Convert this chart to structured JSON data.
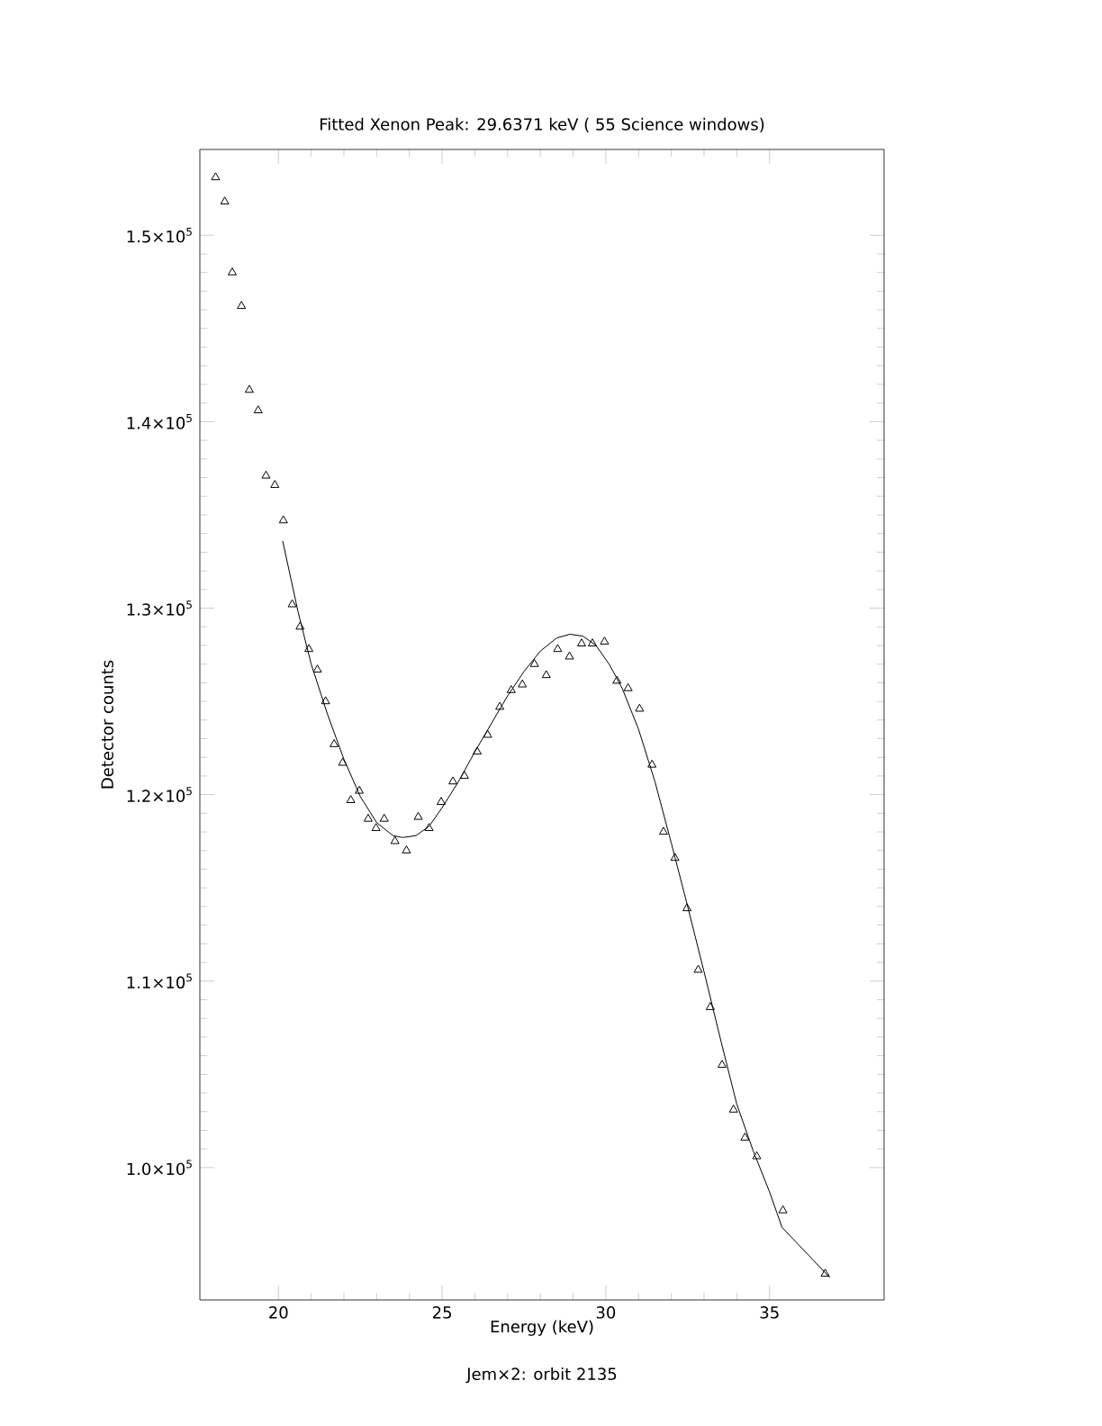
{
  "chart_data": {
    "type": "scatter",
    "title": "Fitted Xenon Peak:      29.6371 keV (      55 Science windows)",
    "xlabel": "Energy (keV)",
    "ylabel": "Detector counts",
    "annotations": [
      "Jem×2: orbit 2135"
    ],
    "xlim": [
      17.6,
      38.5
    ],
    "ylim": [
      92900,
      154600
    ],
    "xticks": [
      20,
      25,
      30,
      35
    ],
    "yticks": [
      {
        "value": 100000,
        "label": "1.0×10$^{5}$"
      },
      {
        "value": 110000,
        "label": "1.1×10$^{5}$"
      },
      {
        "value": 120000,
        "label": "1.2×10$^{5}$"
      },
      {
        "value": 130000,
        "label": "1.3×10$^{5}$"
      },
      {
        "value": 140000,
        "label": "1.4×10$^{5}$"
      },
      {
        "value": 150000,
        "label": "1.5×10$^{5}$"
      }
    ],
    "grid": false,
    "series": [
      {
        "color": "#000000",
        "marker": "triangle",
        "x": [
          18.08,
          18.36,
          18.59,
          18.87,
          19.11,
          19.38,
          19.62,
          19.89,
          20.15,
          20.42,
          20.66,
          20.93,
          21.19,
          21.44,
          21.7,
          21.96,
          22.21,
          22.47,
          22.74,
          22.98,
          23.23,
          23.56,
          23.91,
          24.27,
          24.6,
          24.97,
          25.33,
          25.68,
          26.07,
          26.39,
          26.76,
          27.11,
          27.45,
          27.82,
          28.18,
          28.53,
          28.89,
          29.26,
          29.59,
          29.96,
          30.34,
          30.68,
          31.03,
          31.41,
          31.76,
          32.11,
          32.48,
          32.82,
          33.19,
          33.55,
          33.9,
          34.25,
          34.61,
          35.41,
          36.7
        ],
        "values": [
          153100,
          151800,
          148000,
          146200,
          141700,
          140600,
          137100,
          136600,
          134700,
          130200,
          129000,
          127800,
          126700,
          125000,
          122700,
          121700,
          119700,
          120200,
          118700,
          118200,
          118700,
          117500,
          117000,
          118800,
          118200,
          119600,
          120700,
          121000,
          122300,
          123200,
          124700,
          125600,
          125900,
          127000,
          126400,
          127800,
          127400,
          128100,
          128100,
          128200,
          126100,
          125700,
          124600,
          121600,
          118000,
          116600,
          113900,
          110600,
          108600,
          105500,
          103100,
          101600,
          100600,
          97700,
          94300
        ]
      },
      {
        "type": "line",
        "color": "#000000",
        "marker": "none",
        "line_style": "solid",
        "x": [
          20.13,
          20.6,
          21.0,
          21.5,
          22.0,
          22.5,
          23.0,
          23.5,
          23.8,
          24.2,
          24.6,
          25.0,
          25.5,
          26.0,
          26.5,
          27.0,
          27.5,
          28.0,
          28.5,
          28.9,
          29.3,
          29.7,
          30.1,
          30.5,
          31.0,
          31.5,
          32.0,
          32.5,
          33.0,
          33.5,
          34.0,
          34.5,
          35.0,
          35.38,
          36.84
        ],
        "values": [
          133600,
          129800,
          127000,
          124300,
          121900,
          119900,
          118500,
          117800,
          117700,
          117800,
          118300,
          119300,
          120700,
          122300,
          123800,
          125300,
          126600,
          127700,
          128400,
          128600,
          128500,
          128000,
          127000,
          125700,
          123500,
          120700,
          117400,
          114000,
          110500,
          106900,
          103400,
          100900,
          98700,
          96800,
          94100
        ]
      }
    ]
  }
}
